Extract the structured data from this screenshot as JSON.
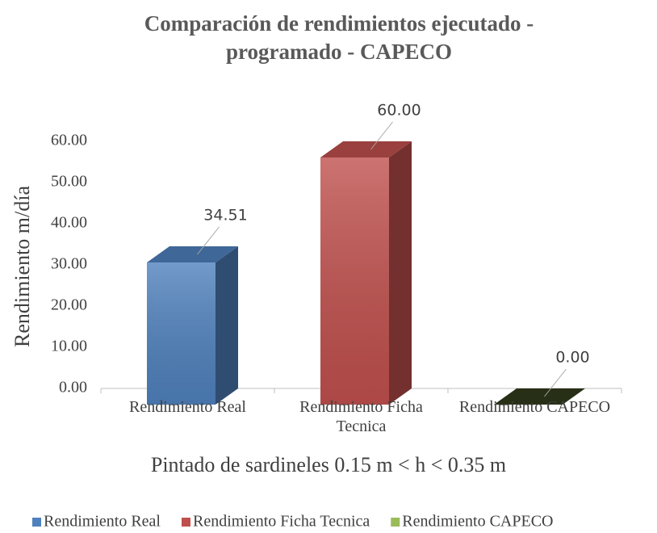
{
  "chart_data": {
    "type": "bar3d",
    "title": "Comparación de rendimientos ejecutado - programado - CAPECO",
    "ylabel": "Rendimiento m/día",
    "xlabel": "Pintado de sardineles 0.15 m < h < 0.35 m",
    "categories": [
      "Rendimiento Real",
      "Rendimiento Ficha Tecnica",
      "Rendimiento CAPECO"
    ],
    "values": [
      34.51,
      60,
      0
    ],
    "value_labels": [
      "34.51",
      "60.00",
      "0.00"
    ],
    "colors": [
      "#4f81bd",
      "#c0504d",
      "#9bbb59"
    ],
    "ylim": [
      0,
      60
    ],
    "yticks": [
      {
        "value": 0,
        "label": "0.00"
      },
      {
        "value": 10,
        "label": "10.00"
      },
      {
        "value": 20,
        "label": "20.00"
      },
      {
        "value": 30,
        "label": "30.00"
      },
      {
        "value": 40,
        "label": "40.00"
      },
      {
        "value": 50,
        "label": "50.00"
      },
      {
        "value": 60,
        "label": "60.00"
      }
    ],
    "legend": "bottom"
  }
}
